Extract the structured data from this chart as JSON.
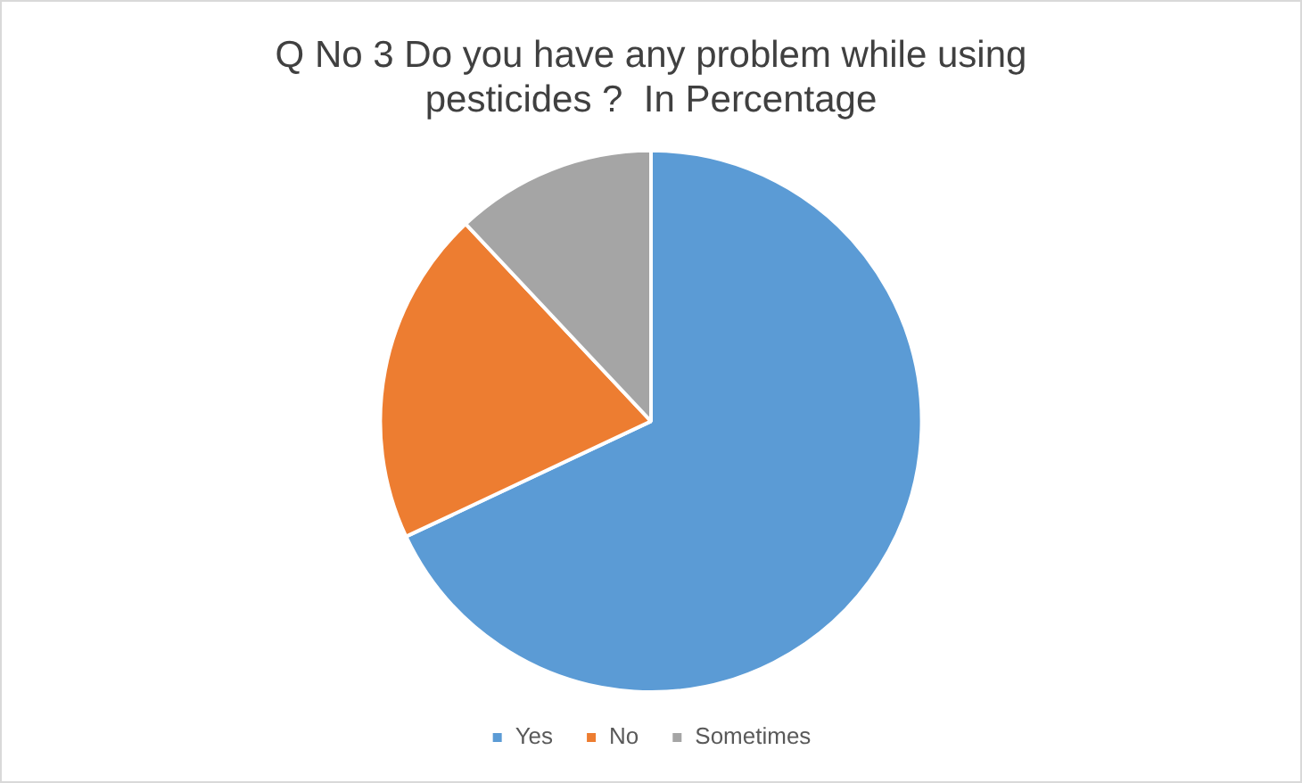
{
  "chart_data": {
    "type": "pie",
    "title": "Q No 3 Do you have any problem while using pesticides ?  In Percentage",
    "categories": [
      "Yes",
      "No",
      "Sometimes"
    ],
    "values": [
      68,
      20,
      12
    ],
    "colors": [
      "#5b9bd5",
      "#ed7d31",
      "#a5a5a5"
    ],
    "legend": "bottom"
  }
}
